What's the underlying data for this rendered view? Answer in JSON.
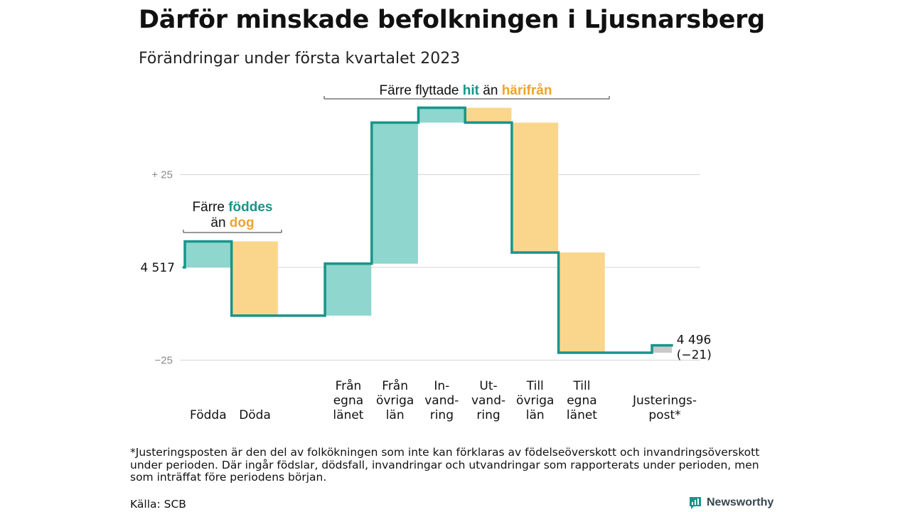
{
  "title": "Därför minskade befolkningen i Ljusnarsberg",
  "subtitle": "Förändringar under första kvartalet 2023",
  "footnote": "*Justeringsposten är den del av folkökningen som inte kan förklaras av födelseöverskott och invandringsöverskott under perioden. Där ingår födslar, dödsfall, invandringar och utvandringar som rapporterats under perioden, men som inträffat före periodens början.",
  "source": "Källa: SCB",
  "brand": "Newsworthy",
  "colors": {
    "line": "#17958a",
    "increase": "#8ed6ce",
    "decrease": "#fad68c",
    "adjustment": "#c9c9c9",
    "grid": "#dcdcdc",
    "hit_text": "#17958a",
    "harifran_text": "#f0a32a"
  },
  "chart_data": {
    "type": "waterfall",
    "start_value": 4517,
    "start_label": "4 517",
    "end_value": 4496,
    "end_label": "4 496",
    "end_change_label": "(−21)",
    "baseline": 4517,
    "ylim": [
      -25,
      45
    ],
    "yticks": [
      {
        "value": 25,
        "label": "+ 25"
      },
      {
        "value": 0,
        "label": ""
      },
      {
        "value": -25,
        "label": "−25"
      }
    ],
    "grid": true,
    "categories": [
      {
        "lines": [
          "Födda"
        ],
        "change": 7,
        "kind": "increase"
      },
      {
        "lines": [
          "Döda"
        ],
        "change": -20,
        "kind": "decrease"
      },
      {
        "lines": [],
        "change": 0,
        "kind": "gap"
      },
      {
        "lines": [
          "Från",
          "egna",
          "länet"
        ],
        "change": 14,
        "kind": "increase"
      },
      {
        "lines": [
          "Från",
          "övriga",
          "län"
        ],
        "change": 38,
        "kind": "increase"
      },
      {
        "lines": [
          "In-",
          "vand-",
          "ring"
        ],
        "change": 4,
        "kind": "increase"
      },
      {
        "lines": [
          "Ut-",
          "vand-",
          "ring"
        ],
        "change": -4,
        "kind": "decrease"
      },
      {
        "lines": [
          "Till",
          "övriga",
          "län"
        ],
        "change": -35,
        "kind": "decrease"
      },
      {
        "lines": [
          "Till",
          "egna",
          "länet"
        ],
        "change": -27,
        "kind": "decrease"
      },
      {
        "lines": [],
        "change": 0,
        "kind": "gap"
      },
      {
        "lines": [
          "Justerings-",
          "post*"
        ],
        "change": 2,
        "kind": "adjustment"
      }
    ],
    "annotations": [
      {
        "group": "births",
        "parts": [
          {
            "text": "Färre ",
            "style": "plain"
          },
          {
            "text": "föddes",
            "style": "hit"
          },
          {
            "text": "än ",
            "style": "plain",
            "newline": true
          },
          {
            "text": "dog",
            "style": "harifran"
          }
        ]
      },
      {
        "group": "moves",
        "parts": [
          {
            "text": "Färre flyttade ",
            "style": "plain"
          },
          {
            "text": "hit",
            "style": "hit"
          },
          {
            "text": " än ",
            "style": "plain"
          },
          {
            "text": "härifrån",
            "style": "harifran"
          }
        ]
      }
    ]
  }
}
